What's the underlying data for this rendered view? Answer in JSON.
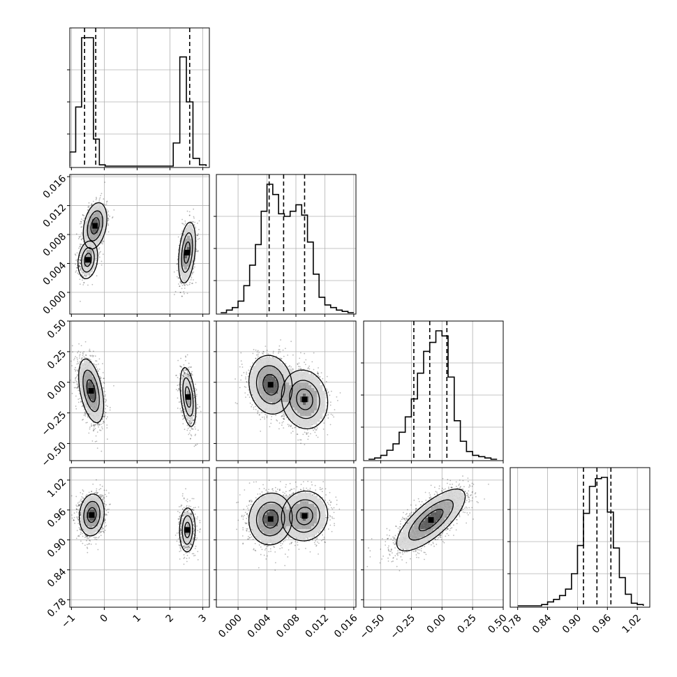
{
  "chart_data": {
    "type": "corner",
    "n_params": 4,
    "colors": {
      "line": "#000000",
      "grid": "#b0b0b0",
      "scatter": "#000000",
      "background": "#ffffff"
    },
    "params": [
      {
        "ticks": [
          -1,
          0,
          1,
          2,
          3
        ],
        "tick_labels": [
          "−1",
          "0",
          "1",
          "2",
          "3"
        ],
        "range": [
          -1.05,
          3.2
        ]
      },
      {
        "ticks": [
          0.0,
          0.004,
          0.008,
          0.012,
          0.016
        ],
        "tick_labels": [
          "0.000",
          "0.004",
          "0.008",
          "0.012",
          "0.016"
        ],
        "range": [
          -0.003,
          0.0163
        ]
      },
      {
        "ticks": [
          -0.5,
          -0.25,
          0.0,
          0.25,
          0.5
        ],
        "tick_labels": [
          "−0.50",
          "−0.25",
          "0.00",
          "0.25",
          "0.50"
        ],
        "range": [
          -0.64,
          0.5
        ]
      },
      {
        "ticks": [
          0.78,
          0.84,
          0.9,
          0.96,
          1.02
        ],
        "tick_labels": [
          "0.78",
          "0.84",
          "0.90",
          "0.96",
          "1.02"
        ],
        "range": [
          0.765,
          1.045
        ]
      }
    ],
    "histograms": [
      {
        "param": 0,
        "edges": [
          -1.05,
          -0.87,
          -0.69,
          -0.51,
          -0.33,
          -0.15,
          0.03,
          0.21,
          2.1,
          2.3,
          2.5,
          2.7,
          2.9,
          3.1
        ],
        "counts": [
          0.11,
          0.46,
          1.0,
          1.0,
          0.21,
          0.01,
          0,
          0,
          0.18,
          0.85,
          0.5,
          0.06,
          0.01
        ],
        "quantiles": [
          -0.6,
          -0.26,
          2.6
        ]
      },
      {
        "param": 1,
        "edges": [
          -0.0024,
          -0.0016,
          -0.0008,
          0.0,
          0.0008,
          0.0016,
          0.0024,
          0.0032,
          0.004,
          0.0048,
          0.0056,
          0.0064,
          0.0072,
          0.008,
          0.0088,
          0.0096,
          0.0104,
          0.0112,
          0.012,
          0.0128,
          0.0136,
          0.0144,
          0.0152,
          0.016
        ],
        "counts": [
          0.0,
          0.02,
          0.04,
          0.09,
          0.21,
          0.37,
          0.53,
          0.79,
          1.0,
          0.92,
          0.77,
          0.75,
          0.79,
          0.84,
          0.76,
          0.55,
          0.3,
          0.12,
          0.06,
          0.04,
          0.02,
          0.01,
          0.0
        ],
        "quantiles": [
          0.0043,
          0.0063,
          0.0092
        ]
      },
      {
        "param": 2,
        "edges": [
          -0.6,
          -0.55,
          -0.5,
          -0.45,
          -0.4,
          -0.35,
          -0.3,
          -0.25,
          -0.2,
          -0.15,
          -0.1,
          -0.05,
          0.0,
          0.05,
          0.1,
          0.15,
          0.2,
          0.25,
          0.3,
          0.35,
          0.4,
          0.45
        ],
        "counts": [
          0.0,
          0.01,
          0.03,
          0.07,
          0.12,
          0.21,
          0.33,
          0.47,
          0.67,
          0.84,
          0.91,
          1.0,
          0.96,
          0.64,
          0.3,
          0.14,
          0.06,
          0.03,
          0.02,
          0.01,
          0.0
        ],
        "quantiles": [
          -0.23,
          -0.1,
          0.04
        ]
      },
      {
        "param": 3,
        "edges": [
          0.78,
          0.792,
          0.804,
          0.816,
          0.828,
          0.84,
          0.852,
          0.864,
          0.876,
          0.888,
          0.9,
          0.912,
          0.924,
          0.936,
          0.948,
          0.96,
          0.972,
          0.984,
          0.996,
          1.008,
          1.02,
          1.032
        ],
        "counts": [
          0.0,
          0.0,
          0.0,
          0.0,
          0.01,
          0.03,
          0.05,
          0.08,
          0.13,
          0.25,
          0.47,
          0.72,
          0.93,
          0.99,
          1.0,
          0.73,
          0.45,
          0.22,
          0.09,
          0.02,
          0.01
        ],
        "quantiles": [
          0.912,
          0.939,
          0.967
        ]
      }
    ],
    "joint": [
      {
        "x_param": 0,
        "y_param": 1,
        "modes": [
          {
            "mx": -0.5,
            "my": 0.0045,
            "sx": 0.15,
            "sy": 0.0013,
            "rho": 0.2,
            "n": 550
          },
          {
            "mx": -0.28,
            "my": 0.0092,
            "sx": 0.18,
            "sy": 0.0016,
            "rho": 0.3,
            "n": 900
          },
          {
            "mx": 2.52,
            "my": 0.0055,
            "sx": 0.13,
            "sy": 0.0021,
            "rho": 0.35,
            "n": 800
          }
        ]
      },
      {
        "x_param": 0,
        "y_param": 2,
        "modes": [
          {
            "mx": -0.4,
            "my": -0.07,
            "sx": 0.19,
            "sy": 0.13,
            "rho": -0.45,
            "n": 1500
          },
          {
            "mx": 2.55,
            "my": -0.12,
            "sx": 0.12,
            "sy": 0.12,
            "rho": -0.4,
            "n": 800
          }
        ]
      },
      {
        "x_param": 0,
        "y_param": 3,
        "modes": [
          {
            "mx": -0.38,
            "my": 0.95,
            "sx": 0.19,
            "sy": 0.021,
            "rho": 0.1,
            "n": 1500
          },
          {
            "mx": 2.53,
            "my": 0.92,
            "sx": 0.12,
            "sy": 0.022,
            "rho": 0.05,
            "n": 800
          }
        ]
      },
      {
        "x_param": 1,
        "y_param": 2,
        "modes": [
          {
            "mx": 0.0045,
            "my": -0.02,
            "sx": 0.0015,
            "sy": 0.12,
            "rho": -0.1,
            "n": 1300
          },
          {
            "mx": 0.0092,
            "my": -0.14,
            "sx": 0.0016,
            "sy": 0.12,
            "rho": -0.1,
            "n": 1100
          }
        ]
      },
      {
        "x_param": 1,
        "y_param": 3,
        "modes": [
          {
            "mx": 0.0045,
            "my": 0.942,
            "sx": 0.0015,
            "sy": 0.026,
            "rho": 0.05,
            "n": 1300
          },
          {
            "mx": 0.0092,
            "my": 0.948,
            "sx": 0.0016,
            "sy": 0.025,
            "rho": 0.05,
            "n": 1100
          }
        ]
      },
      {
        "x_param": 2,
        "y_param": 3,
        "modes": [
          {
            "mx": -0.09,
            "my": 0.94,
            "sx": 0.14,
            "sy": 0.031,
            "rho": 0.75,
            "n": 2400
          }
        ]
      }
    ]
  }
}
